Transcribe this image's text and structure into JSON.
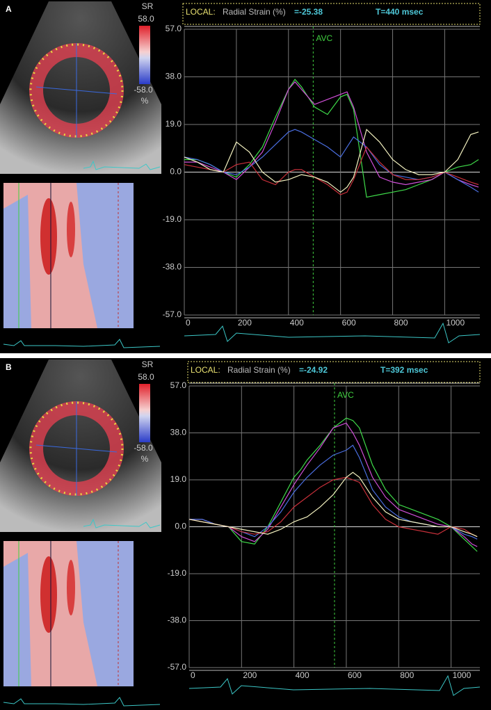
{
  "chart_data": [
    {
      "type": "line",
      "panel": "A",
      "local_label": "LOCAL:",
      "title": "Radial Strain (%)",
      "value_readout": "=-25.38",
      "time_readout": "T=440 msec",
      "colorbar": {
        "title": "SR",
        "max_label": "58.0",
        "min_label": "-58.0",
        "unit": "%"
      },
      "annotations": [
        {
          "text": "AVC",
          "x": 495
        }
      ],
      "x": [
        0,
        50,
        100,
        150,
        200,
        250,
        300,
        350,
        400,
        425,
        450,
        500,
        550,
        600,
        625,
        650,
        700,
        750,
        800,
        850,
        900,
        950,
        1000,
        1050,
        1100,
        1130
      ],
      "series": [
        {
          "color": "#3fdc4a",
          "values": [
            5,
            5,
            3,
            0,
            -2,
            3,
            10,
            22,
            33,
            37,
            34,
            26,
            23,
            30,
            31,
            25,
            -10,
            -9,
            -8,
            -7,
            -5,
            -3,
            0,
            2,
            3,
            5
          ]
        },
        {
          "color": "#d04fd8",
          "values": [
            4,
            4,
            2,
            0,
            -3,
            2,
            8,
            20,
            33,
            36,
            33,
            27,
            29,
            31,
            32,
            26,
            8,
            -2,
            -4,
            -5,
            -4,
            -3,
            0,
            -3,
            -5,
            -6
          ]
        },
        {
          "color": "#4a6ee0",
          "values": [
            6,
            5,
            3,
            0,
            -1,
            2,
            6,
            11,
            16,
            17,
            16,
            13,
            10,
            6,
            10,
            14,
            10,
            3,
            -1,
            -2,
            -3,
            -2,
            0,
            -3,
            -6,
            -8
          ]
        },
        {
          "color": "#c8303a",
          "values": [
            3,
            2,
            1,
            0,
            3,
            4,
            -3,
            -5,
            0,
            1,
            1,
            -2,
            -5,
            -9,
            -8,
            -3,
            10,
            4,
            -1,
            -3,
            -3,
            -2,
            0,
            -2,
            -4,
            -5
          ]
        },
        {
          "color": "#f4f2c0",
          "values": [
            6,
            4,
            1,
            0,
            12,
            8,
            0,
            -4,
            -3,
            -2,
            -1,
            -2,
            -4,
            -8,
            -6,
            -2,
            17,
            12,
            5,
            1,
            -1,
            -1,
            0,
            5,
            15,
            16
          ]
        }
      ],
      "xlim": [
        0,
        1135
      ],
      "xticks": [
        0,
        200,
        400,
        600,
        800,
        1000
      ],
      "ylim": [
        -57,
        57
      ],
      "yticks": [
        {
          "value": 57,
          "label": "57.0"
        },
        {
          "value": 38,
          "label": "38.0"
        },
        {
          "value": 19,
          "label": "19.0"
        },
        {
          "value": 0,
          "label": "0.0"
        },
        {
          "value": -19,
          "label": "-19.0"
        },
        {
          "value": -38,
          "label": "-38.0"
        },
        {
          "value": -57,
          "label": "-57.0"
        }
      ],
      "grid": true
    },
    {
      "type": "line",
      "panel": "B",
      "local_label": "LOCAL:",
      "title": "Radial Strain (%)",
      "value_readout": "=-24.92",
      "time_readout": "T=392 msec",
      "colorbar": {
        "title": "SR",
        "max_label": "58.0",
        "min_label": "-58.0",
        "unit": "%"
      },
      "annotations": [
        {
          "text": "AVC",
          "x": 555
        }
      ],
      "x": [
        0,
        50,
        100,
        150,
        200,
        250,
        300,
        350,
        400,
        425,
        450,
        500,
        550,
        600,
        625,
        650,
        700,
        750,
        800,
        850,
        900,
        950,
        1000,
        1050,
        1080,
        1100
      ],
      "series": [
        {
          "color": "#3fdc4a",
          "values": [
            3,
            3,
            1,
            0,
            -6,
            -7,
            0,
            10,
            20,
            23,
            27,
            33,
            40,
            44,
            43,
            40,
            25,
            15,
            9,
            7,
            5,
            3,
            0,
            -5,
            -8,
            -10
          ]
        },
        {
          "color": "#d04fd8",
          "values": [
            3,
            3,
            1,
            0,
            -4,
            -6,
            -1,
            8,
            17,
            21,
            25,
            32,
            40,
            42,
            38,
            33,
            20,
            12,
            7,
            5,
            3,
            1,
            0,
            -4,
            -7,
            -8
          ]
        },
        {
          "color": "#4a6ee0",
          "values": [
            3,
            3,
            1,
            0,
            -2,
            -4,
            0,
            6,
            14,
            17,
            20,
            25,
            29,
            31,
            33,
            28,
            15,
            8,
            4,
            2,
            1,
            0,
            0,
            -3,
            -4,
            -5
          ]
        },
        {
          "color": "#c8303a",
          "values": [
            3,
            2,
            1,
            0,
            -2,
            -3,
            -2,
            2,
            8,
            10,
            12,
            16,
            19,
            20,
            19,
            18,
            9,
            3,
            0,
            -1,
            -2,
            -3,
            0,
            -1,
            -3,
            -4
          ]
        },
        {
          "color": "#f4f2c0",
          "values": [
            3,
            2,
            1,
            0,
            -1,
            -2,
            -3,
            -1,
            2,
            3,
            4,
            8,
            13,
            20,
            22,
            20,
            12,
            6,
            3,
            2,
            1,
            0,
            0,
            -2,
            -3,
            -4
          ]
        }
      ],
      "xlim": [
        0,
        1110
      ],
      "xticks": [
        0,
        200,
        400,
        600,
        800,
        1000
      ],
      "ylim": [
        -57,
        57
      ],
      "yticks": [
        {
          "value": 57,
          "label": "57.0"
        },
        {
          "value": 38,
          "label": "38.0"
        },
        {
          "value": 19,
          "label": "19.0"
        },
        {
          "value": 0,
          "label": "0.0"
        },
        {
          "value": -19,
          "label": "-19.0"
        },
        {
          "value": -38,
          "label": "-38.0"
        },
        {
          "value": -57,
          "label": "-57.0"
        }
      ],
      "grid": true
    }
  ]
}
